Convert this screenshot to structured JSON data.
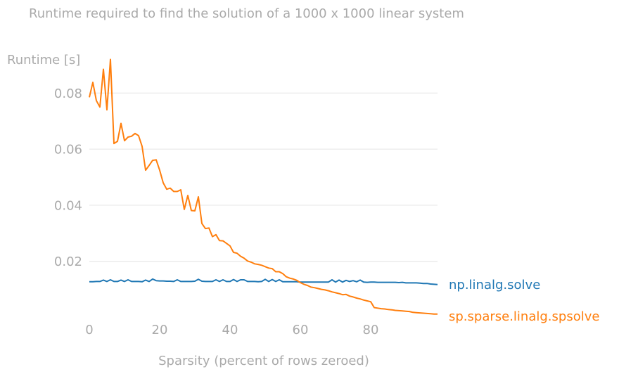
{
  "chart_data": {
    "type": "line",
    "title": "Runtime required to find the solution of a 1000 x 1000 linear system",
    "xlabel": "Sparsity (percent of rows zeroed)",
    "ylabel": "Runtime [s]",
    "xlim": [
      0,
      99
    ],
    "ylim": [
      0,
      0.09
    ],
    "xticks": [
      0,
      20,
      40,
      60,
      80
    ],
    "yticks": [
      0.02,
      0.04,
      0.06,
      0.08
    ],
    "ytick_labels": [
      "0.02",
      "0.04",
      "0.06",
      "0.08"
    ],
    "grid": "horizontal",
    "legend": "direct labels at right end of lines",
    "x": [
      0,
      1,
      2,
      3,
      4,
      5,
      6,
      7,
      8,
      9,
      10,
      11,
      12,
      13,
      14,
      15,
      16,
      17,
      18,
      19,
      20,
      21,
      22,
      23,
      24,
      25,
      26,
      27,
      28,
      29,
      30,
      31,
      32,
      33,
      34,
      35,
      36,
      37,
      38,
      39,
      40,
      41,
      42,
      43,
      44,
      45,
      46,
      47,
      48,
      49,
      50,
      51,
      52,
      53,
      54,
      55,
      56,
      57,
      58,
      59,
      60,
      61,
      62,
      63,
      64,
      65,
      66,
      67,
      68,
      69,
      70,
      71,
      72,
      73,
      74,
      75,
      76,
      77,
      78,
      79,
      80,
      81,
      82,
      83,
      84,
      85,
      86,
      87,
      88,
      89,
      90,
      91,
      92,
      93,
      94,
      95,
      96,
      97,
      98,
      99
    ],
    "series": [
      {
        "name": "np.linalg.solve",
        "color": "#1f77b4",
        "values": [
          0.0127,
          0.0127,
          0.0128,
          0.0128,
          0.0133,
          0.0128,
          0.0134,
          0.0128,
          0.0128,
          0.0133,
          0.0128,
          0.0134,
          0.0128,
          0.0128,
          0.0128,
          0.0127,
          0.0133,
          0.0128,
          0.0137,
          0.0131,
          0.013,
          0.013,
          0.0129,
          0.0129,
          0.0128,
          0.0134,
          0.0128,
          0.0128,
          0.0128,
          0.0128,
          0.0129,
          0.0136,
          0.0129,
          0.0128,
          0.0128,
          0.0128,
          0.0134,
          0.0128,
          0.0134,
          0.0128,
          0.0128,
          0.0135,
          0.0128,
          0.0134,
          0.0134,
          0.0128,
          0.0128,
          0.0128,
          0.0127,
          0.0128,
          0.0136,
          0.0128,
          0.0135,
          0.0128,
          0.0134,
          0.0127,
          0.0127,
          0.0127,
          0.0127,
          0.0127,
          0.0126,
          0.0126,
          0.0126,
          0.0126,
          0.0126,
          0.0126,
          0.0126,
          0.0126,
          0.0126,
          0.0134,
          0.0126,
          0.0133,
          0.0126,
          0.0132,
          0.0128,
          0.0131,
          0.0127,
          0.0133,
          0.0126,
          0.0125,
          0.0126,
          0.0126,
          0.0125,
          0.0125,
          0.0125,
          0.0125,
          0.0125,
          0.0125,
          0.0124,
          0.0125,
          0.0123,
          0.0123,
          0.0123,
          0.0123,
          0.0122,
          0.0121,
          0.0121,
          0.0119,
          0.0118,
          0.0117
        ]
      },
      {
        "name": "sp.sparse.linalg.spsolve",
        "color": "#ff7f0e",
        "values": [
          0.0785,
          0.0838,
          0.0773,
          0.075,
          0.0885,
          0.074,
          0.092,
          0.062,
          0.0628,
          0.0692,
          0.063,
          0.0643,
          0.0646,
          0.0656,
          0.0648,
          0.061,
          0.0525,
          0.0542,
          0.056,
          0.0562,
          0.0525,
          0.048,
          0.0457,
          0.0461,
          0.0449,
          0.0449,
          0.0455,
          0.0385,
          0.0435,
          0.0381,
          0.038,
          0.043,
          0.0335,
          0.0317,
          0.0319,
          0.0288,
          0.0295,
          0.0274,
          0.0273,
          0.0264,
          0.0255,
          0.0232,
          0.0229,
          0.0218,
          0.0211,
          0.0201,
          0.0197,
          0.0191,
          0.0189,
          0.0186,
          0.0181,
          0.0176,
          0.0174,
          0.0163,
          0.0163,
          0.0156,
          0.0145,
          0.014,
          0.0137,
          0.0132,
          0.0124,
          0.0118,
          0.0114,
          0.0108,
          0.0106,
          0.0103,
          0.01,
          0.0098,
          0.0095,
          0.0091,
          0.0088,
          0.0085,
          0.0081,
          0.0082,
          0.0076,
          0.0073,
          0.0069,
          0.0066,
          0.0062,
          0.0059,
          0.0056,
          0.0035,
          0.0033,
          0.0031,
          0.003,
          0.0028,
          0.0027,
          0.0025,
          0.0024,
          0.0023,
          0.0022,
          0.0021,
          0.0018,
          0.0017,
          0.0016,
          0.0015,
          0.0014,
          0.0013,
          0.0012,
          0.0012
        ]
      }
    ]
  }
}
